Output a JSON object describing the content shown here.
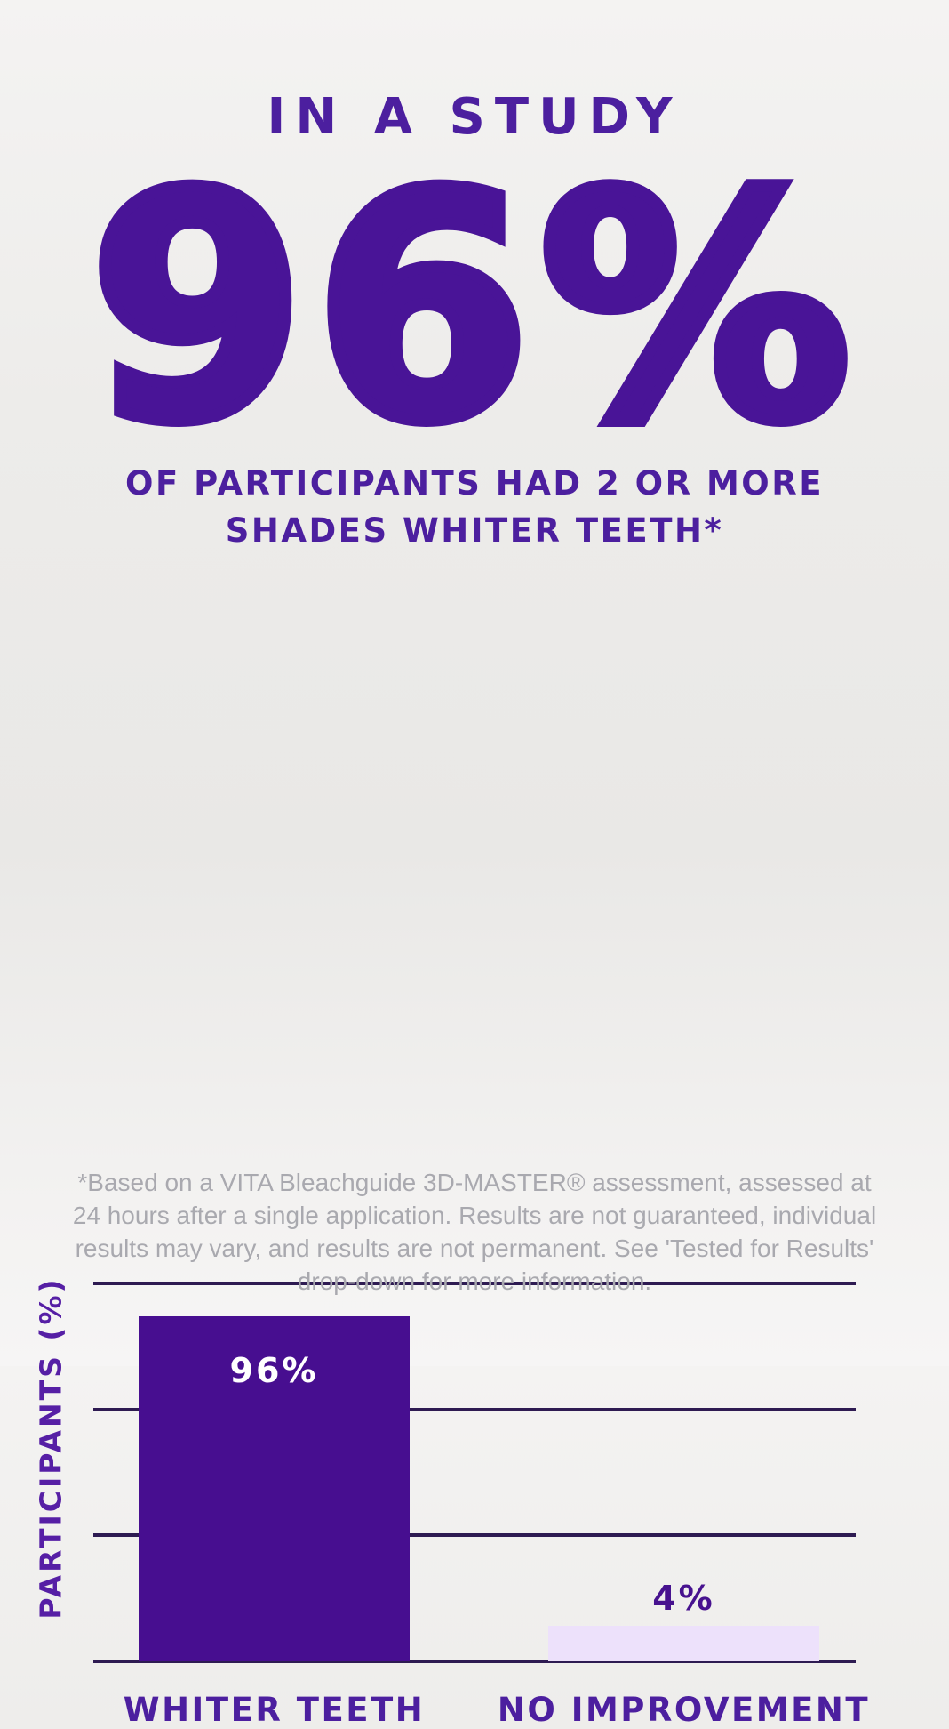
{
  "page": {
    "title": "IN A STUDY",
    "big_stat": "96%",
    "subtitle_line1": "OF PARTICIPANTS HAD 2 OR MORE",
    "subtitle_line2": "SHADES WHITER TEETH*"
  },
  "colors": {
    "brand_purple": "#4c1f9f",
    "stat_purple": "#491497",
    "bar_purple": "#470e90",
    "bar_lavender": "#ede1fb",
    "gridline": "#2e1b52",
    "footnote_gray": "#a9a9af"
  },
  "chart_data": {
    "type": "bar",
    "title": "",
    "categories": [
      "WHITER TEETH",
      "NO IMPROVEMENT"
    ],
    "values": [
      96,
      4
    ],
    "data_labels": [
      "96%",
      "4%"
    ],
    "xlabel": "",
    "ylabel": "PARTICIPANTS (%)",
    "ylim": [
      0,
      100
    ],
    "grid": true,
    "gridline_count": 4,
    "legend": false,
    "bar_colors": [
      "#470e90",
      "#ede1fb"
    ],
    "data_label_colors": [
      "#ffffff",
      "#47128f"
    ],
    "data_label_placement": [
      "inside-top",
      "above"
    ],
    "display_height_fractions": [
      0.912,
      0.095
    ]
  },
  "footnote": {
    "text": "*Based on a VITA Bleachguide 3D-MASTER® assessment, assessed at 24 hours after a single application. Results are not guaranteed, individual results may vary, and results are not permanent. See 'Tested for Results' drop-down for more information."
  }
}
